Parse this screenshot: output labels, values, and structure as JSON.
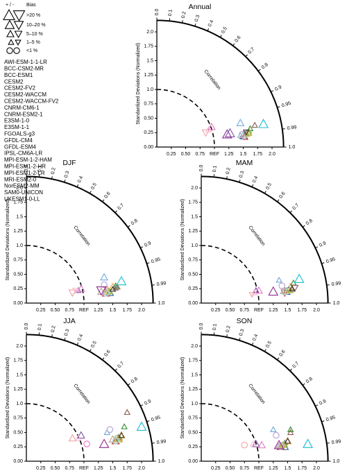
{
  "legend": {
    "bias_header": [
      "+ / -",
      "Bias"
    ],
    "bias_classes": [
      ">20 %",
      "10–20 %",
      "5–10 %",
      "1–5 %",
      "<1 %"
    ],
    "names": [
      "AWI-ESM-1-1-LR",
      "BCC-CSM2-MR",
      "BCC-ESM1",
      "CESM2",
      "CESM2-FV2",
      "CESM2-WACCM",
      "CESM2-WACCM-FV2",
      "CNRM-CM6-1",
      "CNRM-ESM2-1",
      "E3SM-1-0",
      "E3SM-1-1",
      "FGOALS-g3",
      "GFDL-CM4",
      "GFDL-ESM4",
      "IPSL-CM6A-LR",
      "MPI-ESM-1-2-HAM",
      "MPI-ESM1-2-HR",
      "MPI-ESM1-2-LR",
      "MRI-ESM2-0",
      "NorESM2-MM",
      "SAM0-UNICON",
      "UKESM1-0-LL"
    ],
    "colors": [
      "#1f5fa8",
      "#6fa8dc",
      "#e8731c",
      "#f4a340",
      "#2a8a2a",
      "#7cc47c",
      "#d62728",
      "#f4a0a0",
      "#7b4fa8",
      "#b39ddb",
      "#8c564b",
      "#c49c94",
      "#e377c2",
      "#f7b6d2",
      "#7f7f7f",
      "#c7c7c7",
      "#9aa31f",
      "#c8c86a",
      "#17becf",
      "#9edae5",
      "#333333",
      "#8e2b8e"
    ]
  },
  "chart_data": [
    {
      "type": "taylor",
      "title": "Annual",
      "ylabel": "Standardized Deviations (Normalized)",
      "corr_label": "Correlation",
      "xlim": [
        0,
        2.2
      ],
      "ylim": [
        0,
        2.2
      ],
      "ref": 1,
      "xticks": [
        0.25,
        {
          "value": 0.5,
          "label": "0.50"
        },
        0.75,
        {
          "value": 1,
          "label": "REF"
        },
        1.25,
        1.5,
        1.75,
        {
          "value": 2,
          "label": "2.0"
        }
      ],
      "yticks": [
        {
          "value": 0,
          "label": "0.00"
        },
        0.25,
        {
          "value": 0.5,
          "label": "0.50"
        },
        0.75,
        {
          "value": 1,
          "label": "1.0"
        },
        1.25,
        1.5,
        1.75,
        {
          "value": 2,
          "label": "2.0"
        }
      ],
      "corr_ticks": [
        {
          "value": 0,
          "label": "0.0"
        },
        0.1,
        0.2,
        0.3,
        0.4,
        0.5,
        0.6,
        0.7,
        0.8,
        0.9,
        0.95,
        0.99,
        {
          "value": 1,
          "label": "1.0"
        }
      ],
      "x": [
        1.5,
        1.45,
        1.55,
        1.6,
        1.62,
        1.58,
        1.52,
        0.85,
        1.27,
        1.48,
        1.7,
        1.45,
        0.95,
        0.9,
        1.55,
        1.52,
        1.6,
        1.57,
        1.85,
        1.47,
        1.55,
        1.22
      ],
      "y": [
        0.2,
        0.42,
        0.22,
        0.28,
        0.32,
        0.25,
        0.18,
        0.25,
        0.24,
        0.22,
        0.38,
        0.2,
        0.35,
        0.3,
        0.24,
        0.2,
        0.24,
        0.22,
        0.4,
        0.18,
        0.26,
        0.22
      ],
      "markers": [
        "up",
        "up",
        "up",
        "up",
        "up",
        "circle",
        "up",
        "down",
        "up",
        "circle",
        "up",
        "up",
        "up",
        "up",
        "up",
        "circle",
        "up",
        "up",
        "up",
        "circle",
        "down",
        "up"
      ],
      "bias": [
        2,
        2,
        3,
        3,
        3,
        4,
        2,
        2,
        1,
        4,
        3,
        3,
        2,
        3,
        3,
        4,
        3,
        3,
        1,
        4,
        3,
        1
      ]
    },
    {
      "type": "taylor",
      "title": "DJF",
      "ylabel": "Standardized Deviations (Normalized)",
      "corr_label": "Correlation",
      "xlim": [
        0,
        2.2
      ],
      "ylim": [
        0,
        2.2
      ],
      "ref": 1,
      "xticks": [
        0.25,
        {
          "value": 0.5,
          "label": "0.50"
        },
        0.75,
        {
          "value": 1,
          "label": "REF"
        },
        1.25,
        1.5,
        1.75,
        {
          "value": 2,
          "label": "2.0"
        }
      ],
      "yticks": [
        {
          "value": 0,
          "label": "0.00"
        },
        0.25,
        {
          "value": 0.5,
          "label": "0.50"
        },
        0.75,
        {
          "value": 1,
          "label": "1.0"
        },
        1.25,
        1.5,
        1.75,
        {
          "value": 2,
          "label": "2.0"
        }
      ],
      "corr_ticks": [
        {
          "value": 0,
          "label": "0.0"
        },
        0.1,
        0.2,
        0.3,
        0.4,
        0.5,
        0.6,
        0.7,
        0.8,
        0.9,
        0.95,
        0.99,
        {
          "value": 1,
          "label": "1.0"
        }
      ],
      "x": [
        1.45,
        1.35,
        1.4,
        1.5,
        1.55,
        1.42,
        1.38,
        0.8,
        0.9,
        1.35,
        1.58,
        1.3,
        0.95,
        0.85,
        1.55,
        1.4,
        1.45,
        1.42,
        1.65,
        1.38,
        1.5,
        1.3
      ],
      "y": [
        0.18,
        0.45,
        0.25,
        0.28,
        0.3,
        0.2,
        0.17,
        0.18,
        0.22,
        0.32,
        0.28,
        0.2,
        0.25,
        0.22,
        0.26,
        0.18,
        0.2,
        0.19,
        0.38,
        0.17,
        0.24,
        0.22
      ],
      "markers": [
        "up",
        "up",
        "up",
        "up",
        "up",
        "circle",
        "up",
        "down",
        "up",
        "circle",
        "up",
        "up",
        "up",
        "down",
        "up",
        "circle",
        "up",
        "up",
        "up",
        "circle",
        "up",
        "down"
      ],
      "bias": [
        2,
        2,
        3,
        2,
        3,
        4,
        2,
        2,
        3,
        4,
        3,
        2,
        2,
        3,
        3,
        4,
        3,
        3,
        1,
        4,
        3,
        1
      ]
    },
    {
      "type": "taylor",
      "title": "MAM",
      "ylabel": "Standardized Deviations (Normalized)",
      "corr_label": "Correlation",
      "xlim": [
        0,
        2.2
      ],
      "ylim": [
        0,
        2.2
      ],
      "ref": 1,
      "xticks": [
        0.25,
        {
          "value": 0.5,
          "label": "0.50"
        },
        0.75,
        {
          "value": 1,
          "label": "REF"
        },
        1.25,
        1.5,
        1.75,
        {
          "value": 2,
          "label": "2.0"
        }
      ],
      "yticks": [
        {
          "value": 0,
          "label": "0.00"
        },
        0.25,
        {
          "value": 0.5,
          "label": "0.50"
        },
        0.75,
        {
          "value": 1,
          "label": "1.0"
        },
        1.25,
        1.5,
        1.75,
        {
          "value": 2,
          "label": "2.0"
        }
      ],
      "corr_ticks": [
        {
          "value": 0,
          "label": "0.0"
        },
        0.1,
        0.2,
        0.3,
        0.4,
        0.5,
        0.6,
        0.7,
        0.8,
        0.9,
        0.95,
        0.99,
        {
          "value": 1,
          "label": "1.0"
        }
      ],
      "x": [
        1.48,
        1.35,
        1.45,
        1.55,
        1.6,
        1.5,
        1.45,
        0.88,
        0.95,
        1.4,
        1.62,
        1.42,
        1.0,
        0.92,
        1.52,
        1.47,
        1.55,
        1.5,
        1.7,
        1.45,
        1.58,
        1.25
      ],
      "y": [
        0.2,
        0.4,
        0.22,
        0.28,
        0.35,
        0.22,
        0.18,
        0.15,
        0.22,
        0.3,
        0.26,
        0.2,
        0.22,
        0.18,
        0.24,
        0.2,
        0.22,
        0.21,
        0.42,
        0.19,
        0.25,
        0.2
      ],
      "markers": [
        "up",
        "up",
        "up",
        "up",
        "up",
        "circle",
        "down",
        "down",
        "up",
        "circle",
        "down",
        "up",
        "up",
        "up",
        "up",
        "circle",
        "up",
        "up",
        "up",
        "circle",
        "up",
        "up"
      ],
      "bias": [
        2,
        3,
        3,
        2,
        3,
        4,
        2,
        3,
        3,
        4,
        2,
        3,
        2,
        3,
        3,
        4,
        3,
        3,
        1,
        4,
        3,
        1
      ]
    },
    {
      "type": "taylor",
      "title": "JJA",
      "ylabel": "Standardized Deviations (Normalized)",
      "corr_label": "Correlation",
      "xlim": [
        0,
        2.2
      ],
      "ylim": [
        0,
        2.2
      ],
      "ref": 1,
      "xticks": [
        0.25,
        {
          "value": 0.5,
          "label": "0.50"
        },
        0.75,
        {
          "value": 1,
          "label": "REF"
        },
        1.25,
        1.5,
        1.75,
        {
          "value": 2,
          "label": "2.0"
        }
      ],
      "yticks": [
        {
          "value": 0,
          "label": "0.00"
        },
        0.25,
        {
          "value": 0.5,
          "label": "0.50"
        },
        0.75,
        {
          "value": 1,
          "label": "1.0"
        },
        1.25,
        1.5,
        1.75,
        {
          "value": 2,
          "label": "2.0"
        }
      ],
      "corr_ticks": [
        {
          "value": 0,
          "label": "0.0"
        },
        0.1,
        0.2,
        0.3,
        0.4,
        0.5,
        0.6,
        0.7,
        0.8,
        0.9,
        0.95,
        0.99,
        {
          "value": 1,
          "label": "1.0"
        }
      ],
      "x": [
        1.55,
        1.4,
        1.6,
        1.65,
        1.7,
        1.58,
        1.55,
        0.8,
        0.95,
        1.45,
        1.75,
        1.5,
        1.05,
        0.9,
        1.6,
        1.55,
        1.62,
        1.58,
        2.0,
        1.55,
        1.65,
        1.35
      ],
      "y": [
        0.35,
        0.5,
        0.38,
        0.45,
        0.6,
        0.4,
        0.35,
        0.4,
        0.45,
        0.55,
        0.85,
        0.38,
        0.3,
        0.4,
        0.42,
        0.36,
        0.4,
        0.38,
        0.6,
        0.35,
        0.45,
        0.3
      ],
      "markers": [
        "up",
        "up",
        "up",
        "up",
        "up",
        "circle",
        "up",
        "up",
        "up",
        "circle",
        "up",
        "up",
        "circle",
        "up",
        "up",
        "circle",
        "up",
        "up",
        "up",
        "circle",
        "up",
        "up"
      ],
      "bias": [
        2,
        3,
        2,
        2,
        3,
        4,
        2,
        2,
        2,
        4,
        3,
        2,
        4,
        3,
        3,
        4,
        3,
        2,
        1,
        4,
        3,
        1
      ]
    },
    {
      "type": "taylor",
      "title": "SON",
      "ylabel": "Standardized Deviations (Normalized)",
      "corr_label": "Correlation",
      "xlim": [
        0,
        2.2
      ],
      "ylim": [
        0,
        2.2
      ],
      "ref": 1,
      "xticks": [
        0.25,
        {
          "value": 0.5,
          "label": "0.50"
        },
        0.75,
        {
          "value": 1,
          "label": "REF"
        },
        1.25,
        1.5,
        1.75,
        {
          "value": 2,
          "label": "2.0"
        }
      ],
      "yticks": [
        {
          "value": 0,
          "label": "0.00"
        },
        0.25,
        {
          "value": 0.5,
          "label": "0.50"
        },
        0.75,
        {
          "value": 1,
          "label": "1.0"
        },
        1.25,
        1.5,
        1.75,
        {
          "value": 2,
          "label": "2.0"
        }
      ],
      "corr_ticks": [
        {
          "value": 0,
          "label": "0.0"
        },
        0.1,
        0.2,
        0.3,
        0.4,
        0.5,
        0.6,
        0.7,
        0.8,
        0.9,
        0.95,
        0.99,
        {
          "value": 1,
          "label": "1.0"
        }
      ],
      "x": [
        1.45,
        1.25,
        1.4,
        1.5,
        1.55,
        1.42,
        1.38,
        0.75,
        0.95,
        1.3,
        1.55,
        1.35,
        1.05,
        0.9,
        1.45,
        1.4,
        1.45,
        1.42,
        1.85,
        1.38,
        1.5,
        1.35
      ],
      "y": [
        0.25,
        0.55,
        0.28,
        0.35,
        0.55,
        0.28,
        0.25,
        0.28,
        0.3,
        0.45,
        0.5,
        0.27,
        0.28,
        0.3,
        0.32,
        0.26,
        0.28,
        0.27,
        0.3,
        0.25,
        0.35,
        0.28
      ],
      "markers": [
        "up",
        "up",
        "up",
        "up",
        "up",
        "circle",
        "up",
        "circle",
        "up",
        "circle",
        "up",
        "up",
        "up",
        "up",
        "up",
        "circle",
        "up",
        "up",
        "up",
        "circle",
        "up",
        "up"
      ],
      "bias": [
        2,
        3,
        3,
        2,
        3,
        4,
        2,
        4,
        2,
        4,
        3,
        3,
        2,
        3,
        3,
        4,
        3,
        3,
        1,
        4,
        3,
        1
      ]
    }
  ]
}
